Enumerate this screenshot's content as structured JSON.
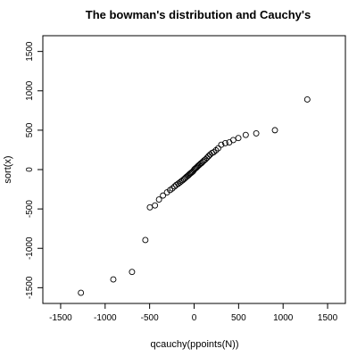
{
  "chart_data": {
    "type": "scatter",
    "title": "The bowman's distribution and Cauchy's",
    "xlabel": "qcauchy(ppoints(N))",
    "ylabel": "sort(x)",
    "xlim": [
      -1700,
      1700
    ],
    "ylim": [
      -1700,
      1700
    ],
    "x_ticks": [
      -1500,
      -1000,
      -500,
      0,
      500,
      1000,
      1500
    ],
    "y_ticks": [
      -1500,
      -1000,
      -500,
      0,
      500,
      1000,
      1500
    ],
    "x_tick_labels": [
      "-1500",
      "-1000",
      "-500",
      "0",
      "500",
      "1000",
      "1500"
    ],
    "y_tick_labels": [
      "-1500",
      "-1000",
      "-500",
      "0",
      "500",
      "1000",
      "1500"
    ],
    "grid": false,
    "marker": "open-circle",
    "series": [
      {
        "x": [
          -1272,
          -908,
          -698,
          -548,
          -497,
          -440,
          -395,
          -350,
          -305,
          -270,
          -245,
          -220,
          -200,
          -180,
          -162,
          -145,
          -128,
          -112,
          -98,
          -85,
          -72,
          -60,
          -48,
          -37,
          -26,
          -15,
          -5,
          5,
          15,
          26,
          37,
          48,
          60,
          72,
          85,
          98,
          112,
          128,
          145,
          162,
          180,
          200,
          220,
          245,
          270,
          305,
          350,
          395,
          440,
          497,
          580,
          698,
          908,
          1272
        ],
        "y": [
          -1565,
          -1395,
          -1300,
          -895,
          -480,
          -455,
          -380,
          -330,
          -290,
          -260,
          -240,
          -215,
          -195,
          -180,
          -165,
          -150,
          -135,
          -120,
          -105,
          -92,
          -80,
          -68,
          -55,
          -45,
          -35,
          -25,
          -10,
          5,
          15,
          25,
          38,
          50,
          62,
          75,
          85,
          100,
          115,
          130,
          150,
          170,
          190,
          210,
          220,
          245,
          270,
          315,
          335,
          345,
          375,
          400,
          440,
          460,
          500,
          890
        ]
      }
    ]
  }
}
